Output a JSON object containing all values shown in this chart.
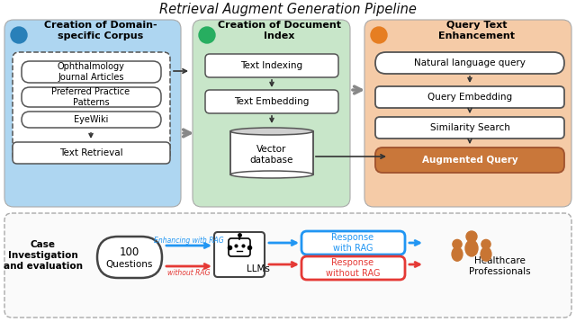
{
  "title": "Retrieval Augment Generation Pipeline",
  "bg_color": "#ffffff",
  "panel1_bg": "#aed6f1",
  "panel2_bg": "#c8e6c9",
  "panel3_bg": "#f5cba7",
  "num1_color": "#2980b9",
  "num2_color": "#27ae60",
  "num3_color": "#e67e22",
  "panel1_title": "Creation of Domain-\nspecific Corpus",
  "panel2_title": "Creation of Document\nIndex",
  "panel3_title": "Query Text\nEnhancement",
  "box1_items": [
    "Ophthalmology\nJournal Articles",
    "Preferred Practice\nPatterns",
    "EyeWiki"
  ],
  "box1_retrieval": "Text Retrieval",
  "box2_items": [
    "Text Indexing",
    "Text Embedding",
    "Vector\ndatabase"
  ],
  "box3_items": [
    "Natural language query",
    "Query Embedding",
    "Similarity Search",
    "Augmented Query"
  ],
  "bottom_left": "Case\nInvestigation\nand evaluation",
  "bottom_q": "100\nQuestions",
  "bottom_llm": "LLMs",
  "bottom_rag": "Response\nwith RAG",
  "bottom_norag": "Response\nwithout RAG",
  "bottom_hp": "Healthcare\nProfessionals",
  "arrow_rag_color": "#2196f3",
  "arrow_norag_color": "#e53935",
  "arrow_panel_color": "#888888",
  "augmented_box_fill": "#c9773a",
  "augmented_box_edge": "#a0522d",
  "response_rag_text": "#2196f3",
  "response_norag_text": "#e53935"
}
